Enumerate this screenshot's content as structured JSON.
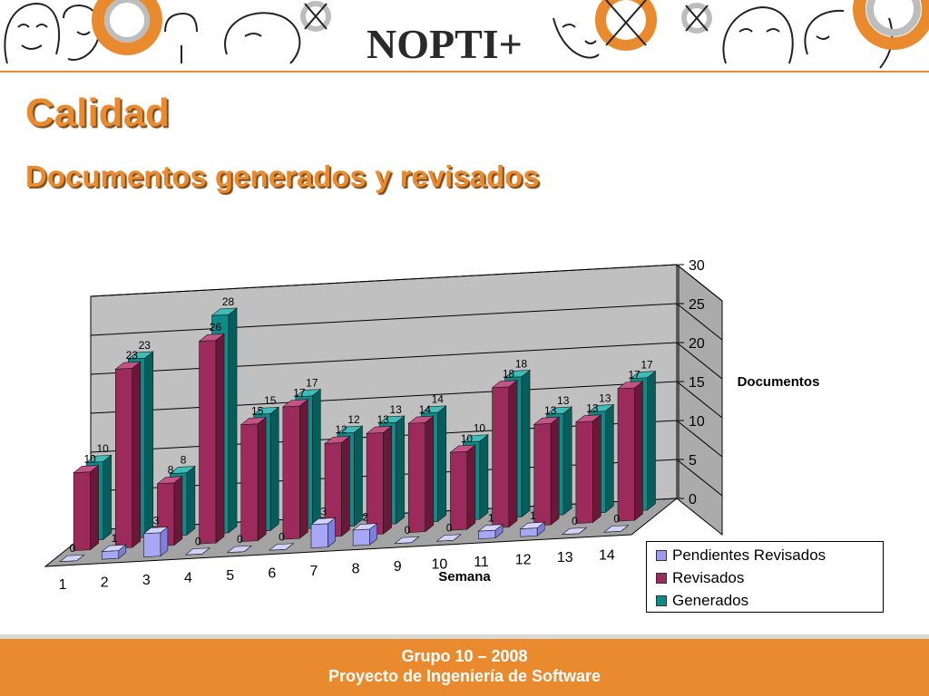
{
  "header": {
    "logo_text": "NOPTI+",
    "title": "Calidad",
    "subtitle": "Documentos generados y revisados"
  },
  "footer": {
    "line1": "Grupo 10 – 2008",
    "line2": "Proyecto de Ingeniería de Software"
  },
  "colors": {
    "accent": "#e98a2e",
    "generados": "#0e8a88",
    "revisados": "#9c2a5a",
    "pendientes": "#9b9bf0"
  },
  "chart_data": {
    "type": "bar",
    "subtype": "3d-clustered-column",
    "xlabel": "Semana",
    "ylabel": "Documentos",
    "ylim": [
      0,
      30
    ],
    "yticks": [
      0,
      5,
      10,
      15,
      20,
      25,
      30
    ],
    "categories": [
      "1",
      "2",
      "3",
      "4",
      "5",
      "6",
      "7",
      "8",
      "9",
      "10",
      "11",
      "12",
      "13",
      "14"
    ],
    "series": [
      {
        "name": "Pendientes Revisados",
        "values": [
          0,
          1,
          3,
          0,
          0,
          0,
          3,
          2,
          0,
          0,
          1,
          1,
          0,
          0
        ]
      },
      {
        "name": "Revisados",
        "values": [
          10,
          23,
          8,
          26,
          15,
          17,
          12,
          13,
          14,
          10,
          18,
          13,
          13,
          17
        ]
      },
      {
        "name": "Generados",
        "values": [
          10,
          23,
          8,
          28,
          15,
          17,
          12,
          13,
          14,
          10,
          18,
          13,
          13,
          17
        ]
      }
    ],
    "legend_position": "bottom-right",
    "grid": true
  }
}
